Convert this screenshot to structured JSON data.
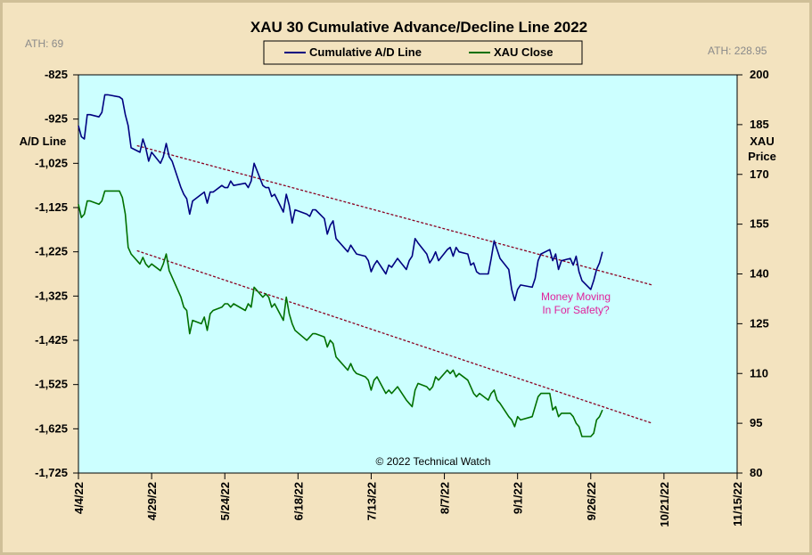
{
  "chart_data": {
    "type": "line",
    "title": "XAU 30 Cumulative Advance/Decline Line 2022",
    "left_axis": {
      "label": [
        "A/D",
        "Line"
      ],
      "ticks": [
        "-825",
        "-925",
        "-1,025",
        "-1,125",
        "-1,225",
        "-1,325",
        "-1,425",
        "-1,525",
        "-1,625",
        "-1,725"
      ],
      "ylim": [
        -1725,
        -825
      ]
    },
    "right_axis": {
      "label": [
        "XAU",
        "Price"
      ],
      "ticks": [
        "200",
        "185",
        "170",
        "155",
        "140",
        "125",
        "110",
        "95",
        "80"
      ],
      "ylim": [
        80,
        200
      ]
    },
    "x_axis": {
      "ticks": [
        "4/4/22",
        "4/29/22",
        "5/24/22",
        "6/18/22",
        "7/13/22",
        "8/7/22",
        "9/1/22",
        "9/26/22",
        "10/21/22",
        "11/15/22"
      ],
      "xlim": [
        "4/4/22",
        "11/15/22"
      ]
    },
    "ath_left": "ATH: 69",
    "ath_right": "ATH: 228.95",
    "annotation": [
      "Money Moving",
      "In For Safety?"
    ],
    "copyright": "© 2022 Technical Watch",
    "legend_placement": "top-center",
    "series": [
      {
        "name": "Cumulative A/D Line",
        "axis": "left",
        "color": "#000080",
        "points": [
          [
            "4/4/22",
            -940
          ],
          [
            "4/5/22",
            -965
          ],
          [
            "4/6/22",
            -970
          ],
          [
            "4/7/22",
            -915
          ],
          [
            "4/8/22",
            -915
          ],
          [
            "4/11/22",
            -920
          ],
          [
            "4/12/22",
            -910
          ],
          [
            "4/13/22",
            -870
          ],
          [
            "4/14/22",
            -870
          ],
          [
            "4/18/22",
            -875
          ],
          [
            "4/19/22",
            -880
          ],
          [
            "4/20/22",
            -915
          ],
          [
            "4/21/22",
            -940
          ],
          [
            "4/22/22",
            -990
          ],
          [
            "4/25/22",
            -1000
          ],
          [
            "4/26/22",
            -970
          ],
          [
            "4/27/22",
            -990
          ],
          [
            "4/28/22",
            -1020
          ],
          [
            "4/29/22",
            -1000
          ],
          [
            "5/2/22",
            -1025
          ],
          [
            "5/3/22",
            -1010
          ],
          [
            "5/4/22",
            -980
          ],
          [
            "5/5/22",
            -1010
          ],
          [
            "5/6/22",
            -1020
          ],
          [
            "5/9/22",
            -1080
          ],
          [
            "5/10/22",
            -1095
          ],
          [
            "5/11/22",
            -1105
          ],
          [
            "5/12/22",
            -1140
          ],
          [
            "5/13/22",
            -1110
          ],
          [
            "5/16/22",
            -1095
          ],
          [
            "5/17/22",
            -1090
          ],
          [
            "5/18/22",
            -1115
          ],
          [
            "5/19/22",
            -1090
          ],
          [
            "5/20/22",
            -1090
          ],
          [
            "5/23/22",
            -1075
          ],
          [
            "5/24/22",
            -1080
          ],
          [
            "5/25/22",
            -1080
          ],
          [
            "5/26/22",
            -1065
          ],
          [
            "5/27/22",
            -1075
          ],
          [
            "5/31/22",
            -1070
          ],
          [
            "6/1/22",
            -1080
          ],
          [
            "6/2/22",
            -1065
          ],
          [
            "6/3/22",
            -1025
          ],
          [
            "6/6/22",
            -1075
          ],
          [
            "6/7/22",
            -1080
          ],
          [
            "6/8/22",
            -1080
          ],
          [
            "6/9/22",
            -1100
          ],
          [
            "6/10/22",
            -1095
          ],
          [
            "6/13/22",
            -1135
          ],
          [
            "6/14/22",
            -1095
          ],
          [
            "6/15/22",
            -1120
          ],
          [
            "6/16/22",
            -1160
          ],
          [
            "6/17/22",
            -1130
          ],
          [
            "6/21/22",
            -1140
          ],
          [
            "6/22/22",
            -1145
          ],
          [
            "6/23/22",
            -1130
          ],
          [
            "6/24/22",
            -1130
          ],
          [
            "6/27/22",
            -1150
          ],
          [
            "6/28/22",
            -1185
          ],
          [
            "6/29/22",
            -1165
          ],
          [
            "6/30/22",
            -1155
          ],
          [
            "7/1/22",
            -1195
          ],
          [
            "7/5/22",
            -1225
          ],
          [
            "7/6/22",
            -1210
          ],
          [
            "7/7/22",
            -1220
          ],
          [
            "7/8/22",
            -1230
          ],
          [
            "7/11/22",
            -1235
          ],
          [
            "7/12/22",
            -1245
          ],
          [
            "7/13/22",
            -1270
          ],
          [
            "7/14/22",
            -1255
          ],
          [
            "7/15/22",
            -1245
          ],
          [
            "7/18/22",
            -1275
          ],
          [
            "7/19/22",
            -1255
          ],
          [
            "7/20/22",
            -1260
          ],
          [
            "7/21/22",
            -1250
          ],
          [
            "7/22/22",
            -1240
          ],
          [
            "7/25/22",
            -1265
          ],
          [
            "7/26/22",
            -1245
          ],
          [
            "7/27/22",
            -1235
          ],
          [
            "7/28/22",
            -1195
          ],
          [
            "7/29/22",
            -1205
          ],
          [
            "8/1/22",
            -1230
          ],
          [
            "8/2/22",
            -1250
          ],
          [
            "8/3/22",
            -1240
          ],
          [
            "8/4/22",
            -1225
          ],
          [
            "8/5/22",
            -1245
          ],
          [
            "8/8/22",
            -1220
          ],
          [
            "8/9/22",
            -1215
          ],
          [
            "8/10/22",
            -1235
          ],
          [
            "8/11/22",
            -1215
          ],
          [
            "8/12/22",
            -1225
          ],
          [
            "8/15/22",
            -1230
          ],
          [
            "8/16/22",
            -1255
          ],
          [
            "8/17/22",
            -1250
          ],
          [
            "8/18/22",
            -1270
          ],
          [
            "8/19/22",
            -1275
          ],
          [
            "8/22/22",
            -1275
          ],
          [
            "8/23/22",
            -1240
          ],
          [
            "8/24/22",
            -1200
          ],
          [
            "8/25/22",
            -1220
          ],
          [
            "8/26/22",
            -1240
          ],
          [
            "8/29/22",
            -1265
          ],
          [
            "8/30/22",
            -1310
          ],
          [
            "8/31/22",
            -1335
          ],
          [
            "9/1/22",
            -1310
          ],
          [
            "9/2/22",
            -1300
          ],
          [
            "9/6/22",
            -1305
          ],
          [
            "9/7/22",
            -1285
          ],
          [
            "9/8/22",
            -1245
          ],
          [
            "9/9/22",
            -1230
          ],
          [
            "9/12/22",
            -1220
          ],
          [
            "9/13/22",
            -1245
          ],
          [
            "9/14/22",
            -1230
          ],
          [
            "9/15/22",
            -1265
          ],
          [
            "9/16/22",
            -1245
          ],
          [
            "9/19/22",
            -1240
          ],
          [
            "9/20/22",
            -1255
          ],
          [
            "9/21/22",
            -1235
          ],
          [
            "9/22/22",
            -1270
          ],
          [
            "9/23/22",
            -1290
          ],
          [
            "9/26/22",
            -1310
          ],
          [
            "9/27/22",
            -1290
          ],
          [
            "9/28/22",
            -1265
          ],
          [
            "9/29/22",
            -1250
          ],
          [
            "9/30/22",
            -1225
          ]
        ]
      },
      {
        "name": "XAU Close",
        "axis": "right",
        "color": "#007000",
        "points": [
          [
            "4/4/22",
            161
          ],
          [
            "4/5/22",
            157
          ],
          [
            "4/6/22",
            158
          ],
          [
            "4/7/22",
            162
          ],
          [
            "4/8/22",
            162
          ],
          [
            "4/11/22",
            161
          ],
          [
            "4/12/22",
            162
          ],
          [
            "4/13/22",
            165
          ],
          [
            "4/14/22",
            165
          ],
          [
            "4/18/22",
            165
          ],
          [
            "4/19/22",
            163
          ],
          [
            "4/20/22",
            158
          ],
          [
            "4/21/22",
            148
          ],
          [
            "4/22/22",
            146
          ],
          [
            "4/25/22",
            143
          ],
          [
            "4/26/22",
            145
          ],
          [
            "4/27/22",
            143
          ],
          [
            "4/28/22",
            142
          ],
          [
            "4/29/22",
            143
          ],
          [
            "5/2/22",
            141
          ],
          [
            "5/3/22",
            143
          ],
          [
            "5/4/22",
            146
          ],
          [
            "5/5/22",
            141
          ],
          [
            "5/6/22",
            139
          ],
          [
            "5/9/22",
            133
          ],
          [
            "5/10/22",
            130
          ],
          [
            "5/11/22",
            129
          ],
          [
            "5/12/22",
            122
          ],
          [
            "5/13/22",
            126
          ],
          [
            "5/16/22",
            125
          ],
          [
            "5/17/22",
            127
          ],
          [
            "5/18/22",
            123
          ],
          [
            "5/19/22",
            128
          ],
          [
            "5/20/22",
            129
          ],
          [
            "5/23/22",
            130
          ],
          [
            "5/24/22",
            131
          ],
          [
            "5/25/22",
            131
          ],
          [
            "5/26/22",
            130
          ],
          [
            "5/27/22",
            131
          ],
          [
            "5/31/22",
            129
          ],
          [
            "6/1/22",
            131
          ],
          [
            "6/2/22",
            130
          ],
          [
            "6/3/22",
            136
          ],
          [
            "6/6/22",
            133
          ],
          [
            "6/7/22",
            134
          ],
          [
            "6/8/22",
            133
          ],
          [
            "6/9/22",
            130
          ],
          [
            "6/10/22",
            131
          ],
          [
            "6/13/22",
            126
          ],
          [
            "6/14/22",
            133
          ],
          [
            "6/15/22",
            128
          ],
          [
            "6/16/22",
            125
          ],
          [
            "6/17/22",
            123
          ],
          [
            "6/21/22",
            120
          ],
          [
            "6/22/22",
            121
          ],
          [
            "6/23/22",
            122
          ],
          [
            "6/24/22",
            122
          ],
          [
            "6/27/22",
            121
          ],
          [
            "6/28/22",
            118
          ],
          [
            "6/29/22",
            120
          ],
          [
            "6/30/22",
            119
          ],
          [
            "7/1/22",
            115
          ],
          [
            "7/5/22",
            111
          ],
          [
            "7/6/22",
            113
          ],
          [
            "7/7/22",
            111
          ],
          [
            "7/8/22",
            110
          ],
          [
            "7/11/22",
            109
          ],
          [
            "7/12/22",
            108
          ],
          [
            "7/13/22",
            105
          ],
          [
            "7/14/22",
            108
          ],
          [
            "7/15/22",
            109
          ],
          [
            "7/18/22",
            104
          ],
          [
            "7/19/22",
            105
          ],
          [
            "7/20/22",
            104
          ],
          [
            "7/21/22",
            105
          ],
          [
            "7/22/22",
            106
          ],
          [
            "7/25/22",
            102
          ],
          [
            "7/26/22",
            101
          ],
          [
            "7/27/22",
            100
          ],
          [
            "7/28/22",
            105
          ],
          [
            "7/29/22",
            107
          ],
          [
            "8/1/22",
            106
          ],
          [
            "8/2/22",
            105
          ],
          [
            "8/3/22",
            106
          ],
          [
            "8/4/22",
            109
          ],
          [
            "8/5/22",
            108
          ],
          [
            "8/8/22",
            111
          ],
          [
            "8/9/22",
            110
          ],
          [
            "8/10/22",
            111
          ],
          [
            "8/11/22",
            109
          ],
          [
            "8/12/22",
            110
          ],
          [
            "8/15/22",
            108
          ],
          [
            "8/16/22",
            106
          ],
          [
            "8/17/22",
            104
          ],
          [
            "8/18/22",
            103
          ],
          [
            "8/19/22",
            104
          ],
          [
            "8/22/22",
            102
          ],
          [
            "8/23/22",
            104
          ],
          [
            "8/24/22",
            105
          ],
          [
            "8/25/22",
            102
          ],
          [
            "8/26/22",
            101
          ],
          [
            "8/29/22",
            97
          ],
          [
            "8/30/22",
            96
          ],
          [
            "8/31/22",
            94
          ],
          [
            "9/1/22",
            97
          ],
          [
            "9/2/22",
            96
          ],
          [
            "9/6/22",
            97
          ],
          [
            "9/7/22",
            100
          ],
          [
            "9/8/22",
            103
          ],
          [
            "9/9/22",
            104
          ],
          [
            "9/12/22",
            104
          ],
          [
            "9/13/22",
            99
          ],
          [
            "9/14/22",
            100
          ],
          [
            "9/15/22",
            97
          ],
          [
            "9/16/22",
            98
          ],
          [
            "9/19/22",
            98
          ],
          [
            "9/20/22",
            97
          ],
          [
            "9/21/22",
            95
          ],
          [
            "9/22/22",
            94
          ],
          [
            "9/23/22",
            91
          ],
          [
            "9/26/22",
            91
          ],
          [
            "9/27/22",
            92
          ],
          [
            "9/28/22",
            96
          ],
          [
            "9/29/22",
            97
          ],
          [
            "9/30/22",
            99
          ]
        ]
      }
    ],
    "trendlines": [
      {
        "axis": "left",
        "from": [
          "4/24/22",
          -985
        ],
        "to": [
          "10/17/22",
          -1300
        ],
        "color": "#8b0020",
        "style": "dashed"
      },
      {
        "axis": "right",
        "from": [
          "4/24/22",
          147
        ],
        "to": [
          "10/17/22",
          95
        ],
        "color": "#8b0020",
        "style": "dashed"
      }
    ]
  },
  "colors": {
    "background": "#f3e3bf",
    "plot_area": "#ccffff",
    "ad_line": "#000080",
    "xau_line": "#007000",
    "trendline": "#8b0020",
    "annotation": "#e0209a"
  }
}
